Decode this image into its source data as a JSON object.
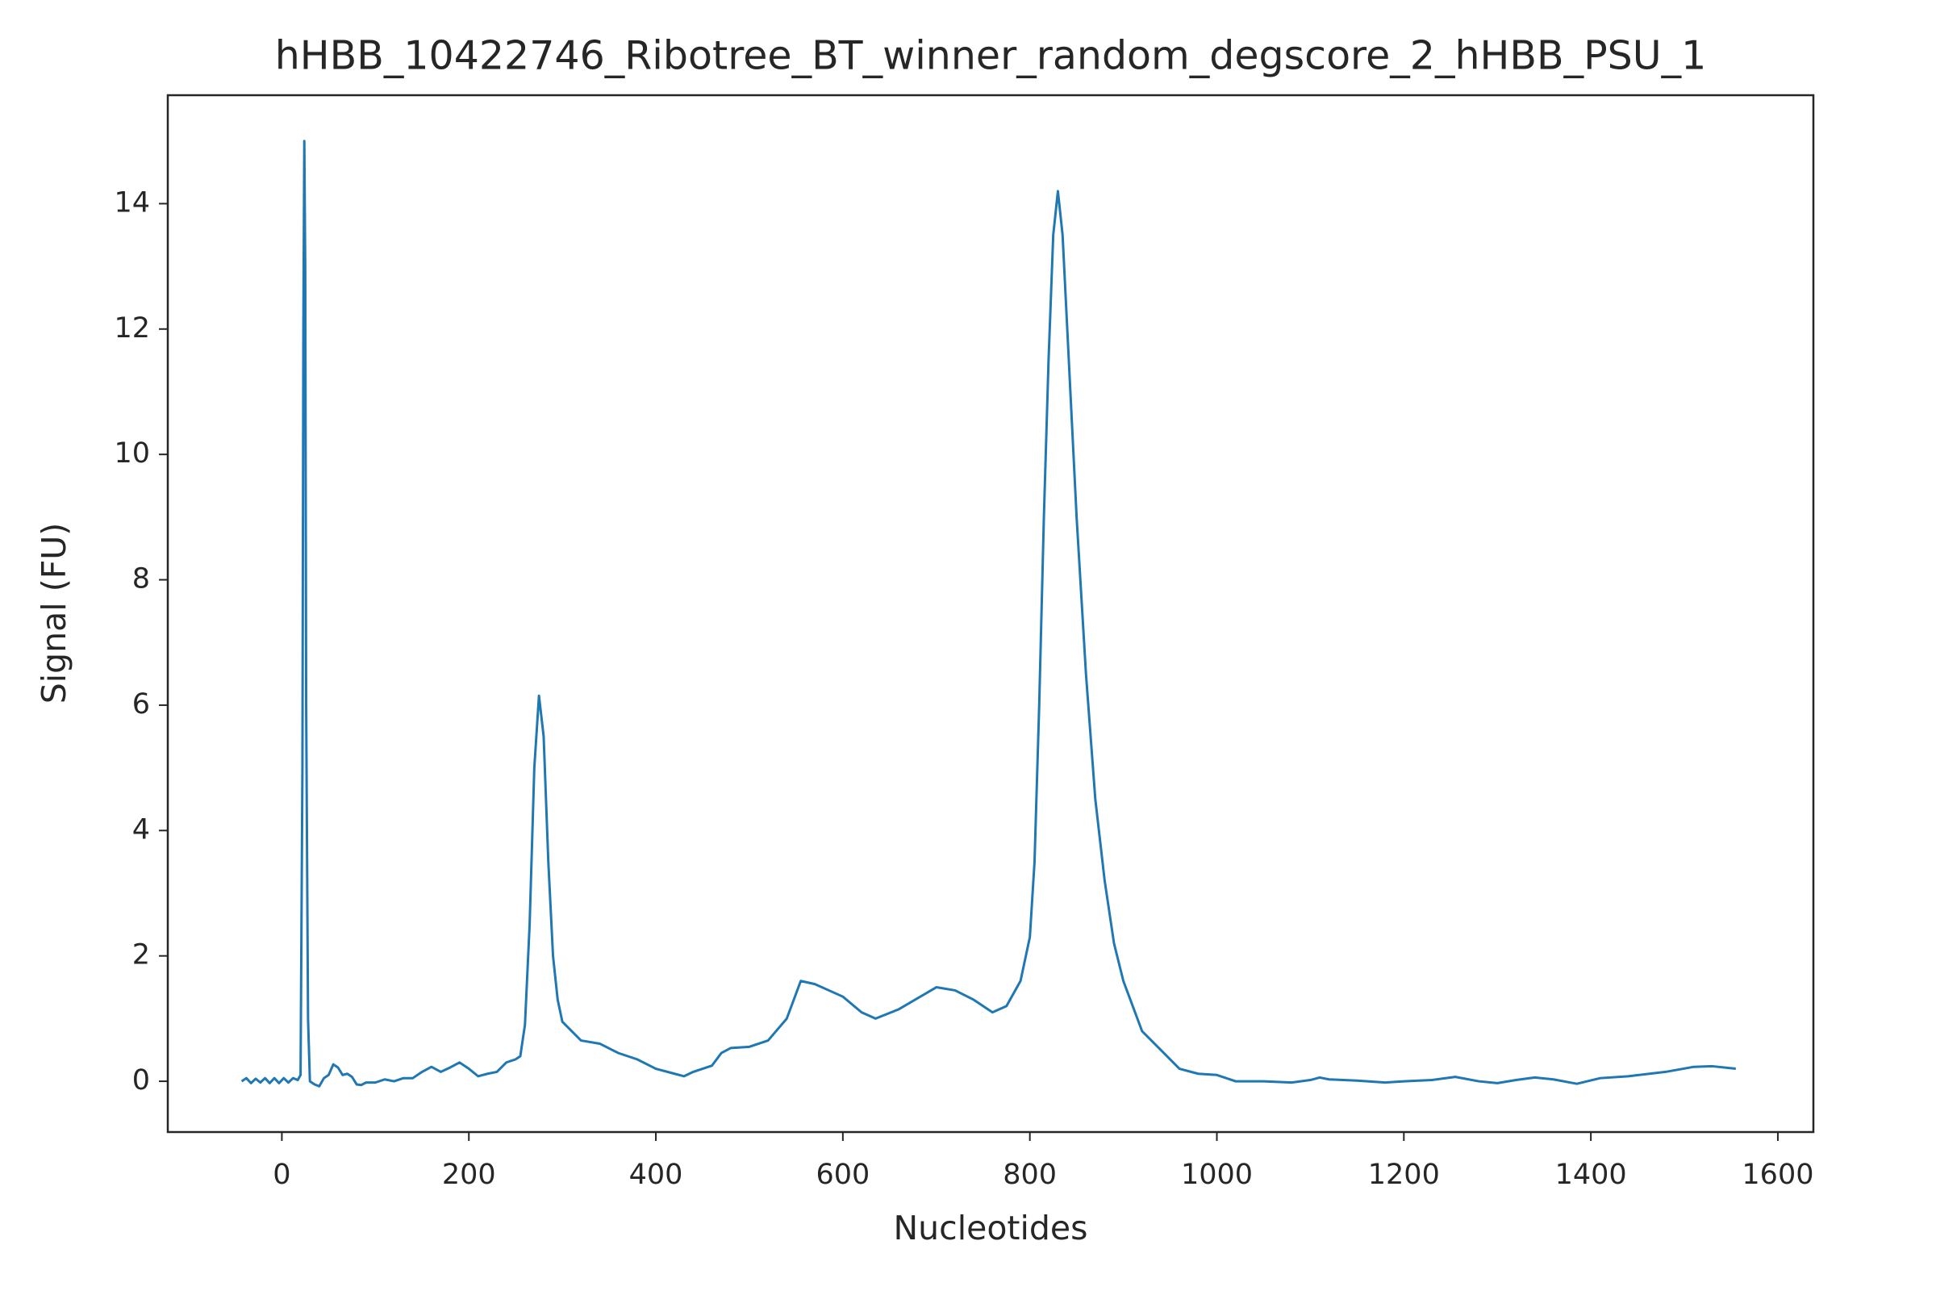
{
  "chart_data": {
    "type": "line",
    "title": "hHBB_10422746_Ribotree_BT_winner_random_degscore_2_hHBB_PSU_1",
    "x_label": "Nucleotides",
    "y_label": "Signal (FU)",
    "color": "#1f77b4",
    "xlim": [
      -122,
      1638
    ],
    "ylim": [
      -0.81,
      15.73
    ],
    "xticks": [
      0,
      200,
      400,
      600,
      800,
      1000,
      1200,
      1400,
      1600
    ],
    "yticks": [
      0,
      2,
      4,
      6,
      8,
      10,
      12,
      14
    ],
    "x": [
      -43,
      -38,
      -33,
      -28,
      -23,
      -18,
      -13,
      -8,
      -3,
      2,
      7,
      12,
      17,
      20,
      22,
      23,
      24,
      25,
      26,
      28,
      30,
      35,
      40,
      45,
      50,
      55,
      60,
      65,
      70,
      75,
      80,
      85,
      90,
      100,
      110,
      120,
      130,
      140,
      150,
      160,
      170,
      180,
      190,
      200,
      210,
      220,
      230,
      240,
      250,
      255,
      260,
      265,
      270,
      275,
      280,
      285,
      290,
      295,
      300,
      310,
      320,
      340,
      360,
      380,
      400,
      420,
      430,
      440,
      460,
      470,
      480,
      500,
      520,
      540,
      555,
      570,
      600,
      620,
      635,
      660,
      700,
      720,
      740,
      760,
      775,
      790,
      800,
      805,
      810,
      815,
      820,
      825,
      830,
      835,
      840,
      850,
      860,
      870,
      880,
      890,
      900,
      920,
      940,
      960,
      980,
      1000,
      1020,
      1050,
      1080,
      1100,
      1110,
      1120,
      1150,
      1180,
      1200,
      1230,
      1255,
      1280,
      1300,
      1320,
      1340,
      1360,
      1385,
      1410,
      1440,
      1480,
      1510,
      1530,
      1555
    ],
    "values": [
      0,
      0.05,
      -0.03,
      0.04,
      -0.02,
      0.05,
      -0.03,
      0.05,
      -0.03,
      0.05,
      -0.02,
      0.05,
      0.02,
      0.1,
      5,
      12,
      15,
      13,
      6,
      1,
      0,
      -0.05,
      -0.08,
      0.05,
      0.1,
      0.27,
      0.22,
      0.1,
      0.12,
      0.07,
      -0.05,
      -0.06,
      -0.02,
      -0.02,
      0.03,
      0,
      0.05,
      0.05,
      0.15,
      0.23,
      0.15,
      0.22,
      0.3,
      0.2,
      0.08,
      0.12,
      0.15,
      0.3,
      0.35,
      0.4,
      0.9,
      2.5,
      5,
      6.15,
      5.5,
      3.5,
      2,
      1.3,
      0.95,
      0.8,
      0.65,
      0.6,
      0.45,
      0.35,
      0.2,
      0.12,
      0.08,
      0.15,
      0.25,
      0.45,
      0.53,
      0.55,
      0.65,
      1,
      1.6,
      1.55,
      1.35,
      1.1,
      1,
      1.15,
      1.5,
      1.45,
      1.3,
      1.1,
      1.2,
      1.6,
      2.3,
      3.5,
      6,
      9,
      11.5,
      13.5,
      14.2,
      13.5,
      12,
      9,
      6.5,
      4.5,
      3.2,
      2.2,
      1.6,
      0.8,
      0.5,
      0.2,
      0.12,
      0.1,
      0,
      0,
      -0.02,
      0.02,
      0.06,
      0.03,
      0.01,
      -0.02,
      0,
      0.02,
      0.07,
      0,
      -0.03,
      0.02,
      0.06,
      0.03,
      -0.04,
      0.05,
      0.08,
      0.15,
      0.23,
      0.24,
      0.2
    ]
  }
}
